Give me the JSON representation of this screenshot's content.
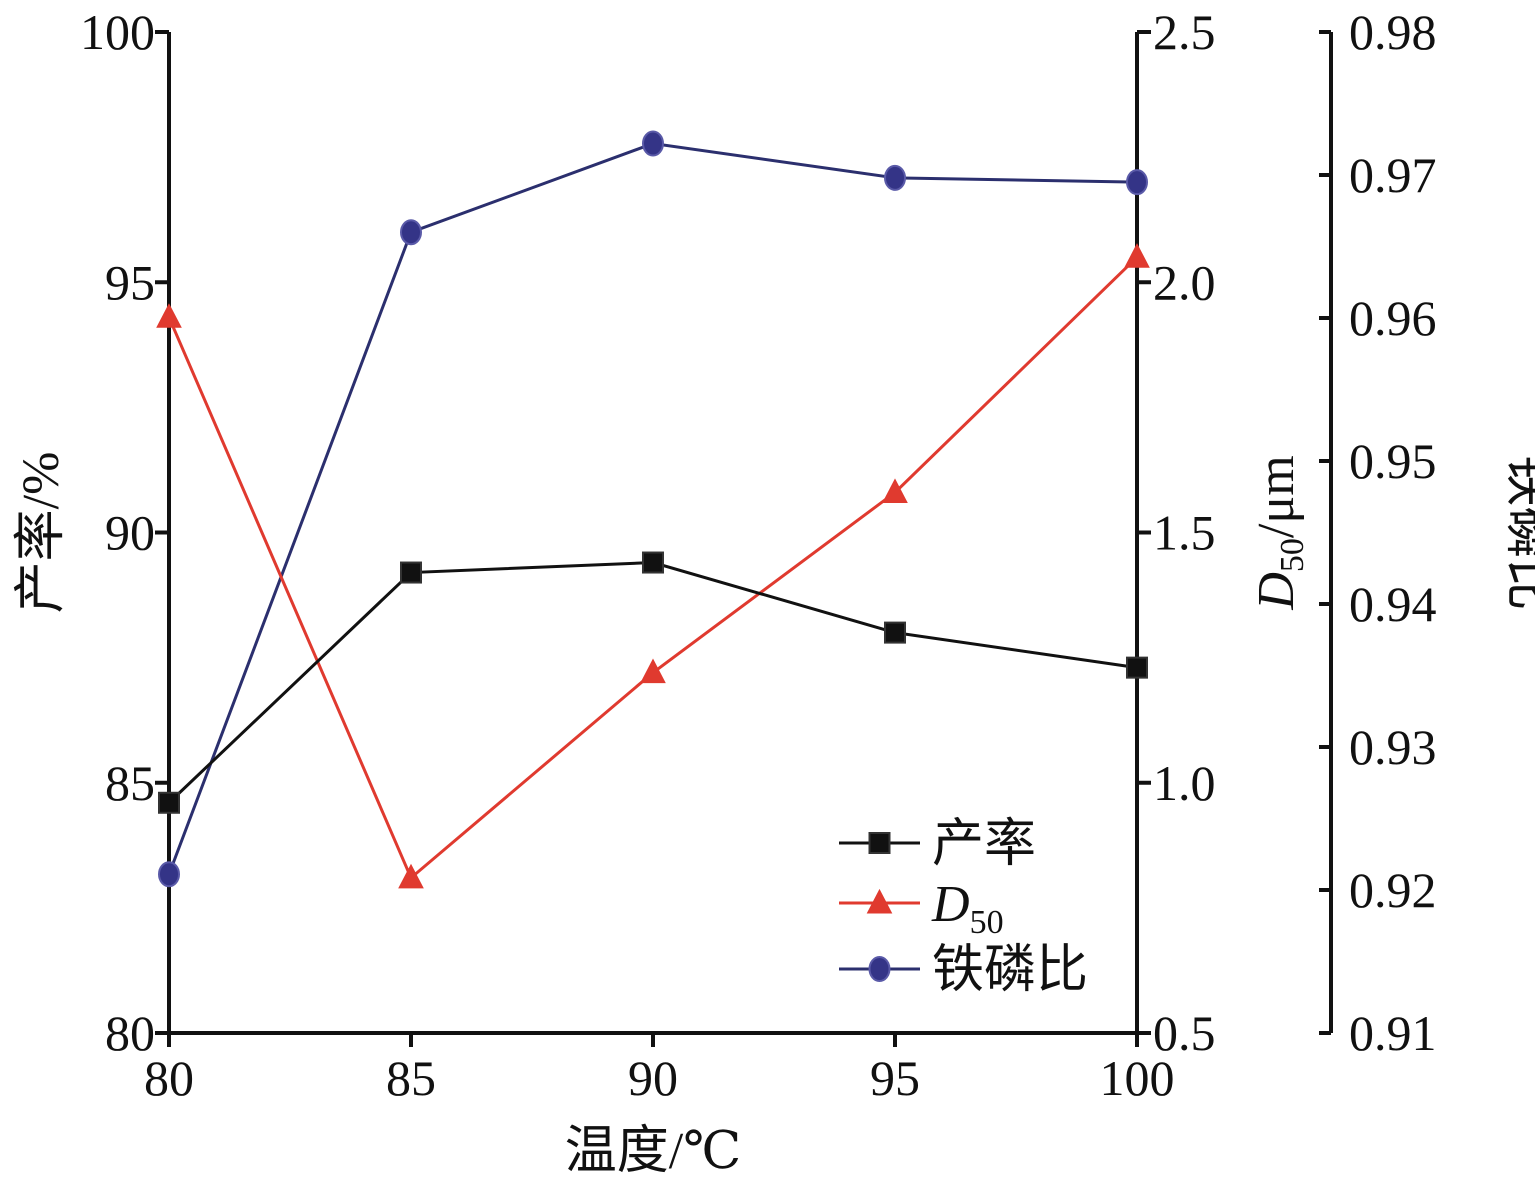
{
  "chart_data": {
    "type": "line",
    "x": [
      80,
      85,
      90,
      95,
      100
    ],
    "xlabel": "温度/℃",
    "xlim": [
      80,
      100
    ],
    "xticks": [
      "80",
      "85",
      "90",
      "95",
      "100"
    ],
    "axes": {
      "left": {
        "label": "产率/%",
        "ylim": [
          80,
          100
        ],
        "ticks": [
          "80",
          "85",
          "90",
          "95",
          "100"
        ]
      },
      "right1": {
        "label_italic": "D",
        "label_sub": "50",
        "label_rest": "/μm",
        "ylim": [
          0.5,
          2.5
        ],
        "ticks": [
          "0.5",
          "1.0",
          "1.5",
          "2.0",
          "2.5"
        ]
      },
      "right2": {
        "label": "铁磷比",
        "ylim": [
          0.91,
          0.98
        ],
        "ticks": [
          "0.91",
          "0.92",
          "0.93",
          "0.94",
          "0.95",
          "0.96",
          "0.97",
          "0.98"
        ]
      }
    },
    "series": [
      {
        "name": "产率",
        "axis": "left",
        "marker": "square",
        "color": "#111111",
        "values": [
          84.6,
          89.2,
          89.4,
          88.0,
          87.3
        ]
      },
      {
        "name_italic": "D",
        "name_sub": "50",
        "axis": "right1",
        "marker": "triangle",
        "color": "#e03a2f",
        "values": [
          1.93,
          0.81,
          1.22,
          1.58,
          2.05
        ]
      },
      {
        "name": "铁磷比",
        "axis": "right2",
        "marker": "circle",
        "color": "#2b2f6e",
        "values": [
          0.9211,
          0.966,
          0.9722,
          0.9698,
          0.9695
        ]
      }
    ],
    "grid": false,
    "legend": "bottom-right"
  }
}
